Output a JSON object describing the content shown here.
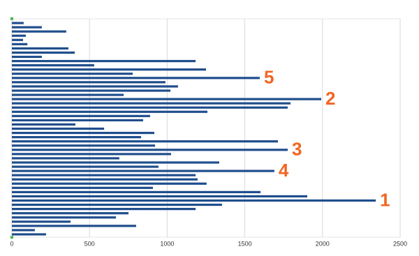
{
  "chart_data": {
    "type": "bar",
    "orientation": "horizontal",
    "categories": [
      null,
      null,
      null,
      null,
      null,
      null,
      null,
      null,
      null,
      null,
      null,
      null,
      null,
      null,
      null,
      null,
      null,
      null,
      null,
      null,
      null,
      null,
      null,
      null,
      null,
      null,
      null,
      null,
      null,
      null,
      null,
      null,
      null,
      null,
      null,
      null,
      null,
      null,
      null,
      null,
      null,
      null,
      null,
      null,
      null,
      null,
      null,
      null,
      null,
      null,
      null
    ],
    "values": [
      76,
      193,
      350,
      90,
      72,
      100,
      364,
      405,
      193,
      1183,
      530,
      1250,
      778,
      1596,
      989,
      1070,
      1021,
      720,
      1992,
      1794,
      1776,
      1259,
      890,
      845,
      409,
      594,
      917,
      832,
      1713,
      922,
      1776,
      1025,
      692,
      1335,
      944,
      1690,
      1183,
      1196,
      1254,
      908,
      1601,
      1902,
      2343,
      1353,
      1183,
      751,
      670,
      378,
      800,
      148,
      220
    ],
    "color": "#1f4e8c",
    "xlim": [
      0,
      2500
    ],
    "xticks": [
      0,
      500,
      1000,
      1500,
      2000,
      2500
    ],
    "grid": true,
    "annotations": [
      {
        "text": "5",
        "bar": 13
      },
      {
        "text": "2",
        "bar": 18
      },
      {
        "text": "3",
        "bar": 30
      },
      {
        "text": "4",
        "bar": 35
      },
      {
        "text": "1",
        "bar": 42
      }
    ],
    "annotation_color": "#f26522"
  }
}
